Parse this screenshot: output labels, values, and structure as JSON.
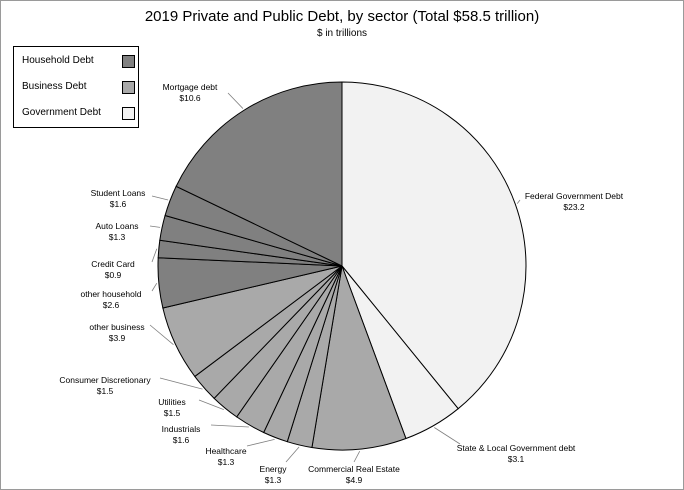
{
  "chart_data": {
    "type": "pie",
    "title": "2019 Private and Public Debt, by sector (Total $58.5 trillion)",
    "subtitle": "$ in trillions",
    "legend": {
      "placement": "top-left",
      "entries": [
        {
          "name": "Household Debt",
          "color": "#808080"
        },
        {
          "name": "Business Debt",
          "color": "#a9a9a9"
        },
        {
          "name": "Government Debt",
          "color": "#f2f2f2"
        }
      ]
    },
    "slices": [
      {
        "label": "Federal Government Debt",
        "value_label": "$23.2",
        "value": 23.2,
        "group": "Government Debt",
        "color": "#f2f2f2"
      },
      {
        "label": "State & Local Government debt",
        "value_label": "$3.1",
        "value": 3.1,
        "group": "Government Debt",
        "color": "#f2f2f2"
      },
      {
        "label": "Commercial Real Estate",
        "value_label": "$4.9",
        "value": 4.9,
        "group": "Business Debt",
        "color": "#a9a9a9"
      },
      {
        "label": "Energy",
        "value_label": "$1.3",
        "value": 1.3,
        "group": "Business Debt",
        "color": "#a9a9a9"
      },
      {
        "label": "Healthcare",
        "value_label": "$1.3",
        "value": 1.3,
        "group": "Business Debt",
        "color": "#a9a9a9"
      },
      {
        "label": "Industrials",
        "value_label": "$1.6",
        "value": 1.6,
        "group": "Business Debt",
        "color": "#a9a9a9"
      },
      {
        "label": "Utilities",
        "value_label": "$1.5",
        "value": 1.5,
        "group": "Business Debt",
        "color": "#a9a9a9"
      },
      {
        "label": "Consumer Discretionary",
        "value_label": "$1.5",
        "value": 1.5,
        "group": "Business Debt",
        "color": "#a9a9a9"
      },
      {
        "label": "other business",
        "value_label": "$3.9",
        "value": 3.9,
        "group": "Business Debt",
        "color": "#a9a9a9"
      },
      {
        "label": "other household",
        "value_label": "$2.6",
        "value": 2.6,
        "group": "Household Debt",
        "color": "#808080"
      },
      {
        "label": "Credit Card",
        "value_label": "$0.9",
        "value": 0.9,
        "group": "Household Debt",
        "color": "#808080"
      },
      {
        "label": "Auto Loans",
        "value_label": "$1.3",
        "value": 1.3,
        "group": "Household Debt",
        "color": "#808080"
      },
      {
        "label": "Student Loans",
        "value_label": "$1.6",
        "value": 1.6,
        "group": "Household Debt",
        "color": "#808080"
      },
      {
        "label": "Mortgage debt",
        "value_label": "$10.6",
        "value": 10.6,
        "group": "Household Debt",
        "color": "#808080"
      }
    ]
  }
}
